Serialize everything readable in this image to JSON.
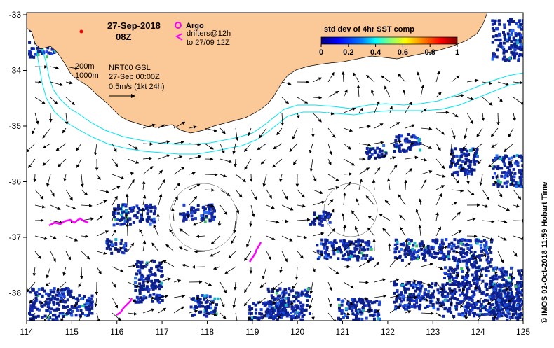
{
  "header": {
    "date": "27-Sep-2018",
    "time": "08Z"
  },
  "legend": {
    "argo_label": "Argo",
    "drifters_line1": "drifters@12h",
    "drifters_line2": "to 27/09 12Z",
    "argo_color": "#ff00ff",
    "drifter_color": "#ff00ff"
  },
  "isobaths": {
    "label_200": "200m",
    "label_1000": "1000m",
    "color": "#00e5ee"
  },
  "model": {
    "line1": "NRT00 GSL",
    "line2": "27-Sep 00:00Z",
    "scale_label": "0.5m/s (1kt 24h)"
  },
  "colorbar": {
    "title": "std dev of 4hr SST comp",
    "ticks": [
      "0",
      "0.2",
      "0.4",
      "0.6",
      "0.8",
      "1"
    ],
    "colors": [
      "#00007f",
      "#0000ff",
      "#0080ff",
      "#00ffff",
      "#80ff80",
      "#ffff00",
      "#ff8000",
      "#ff0000",
      "#7f0000"
    ]
  },
  "axes": {
    "x_ticks": [
      "114",
      "115",
      "116",
      "117",
      "118",
      "119",
      "120",
      "121",
      "122",
      "123",
      "124",
      "125"
    ],
    "y_ticks": [
      "-33",
      "-34",
      "-35",
      "-36",
      "-37",
      "-38"
    ]
  },
  "credit": "©  IMOS 02-Oct-2018 11:59 Hobart Time",
  "colors": {
    "land": "#fbc898",
    "ocean": "#ffffff",
    "sst_patch_main": "#1a237e",
    "sst_patch_mid": "#1e5ccf",
    "sst_patch_high": "#1db899"
  }
}
